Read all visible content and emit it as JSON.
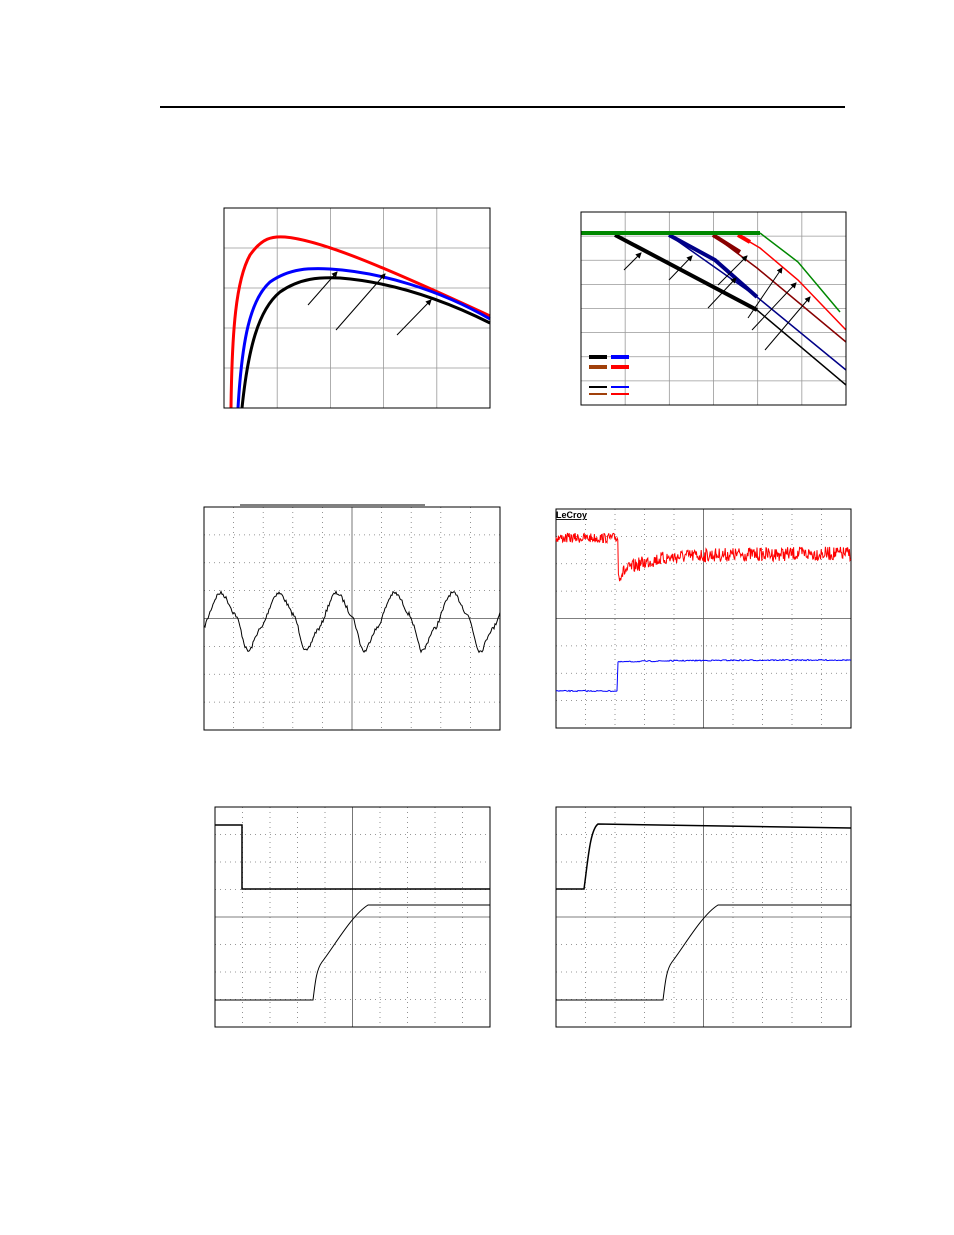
{
  "scope_label": "LeCroy"
}
